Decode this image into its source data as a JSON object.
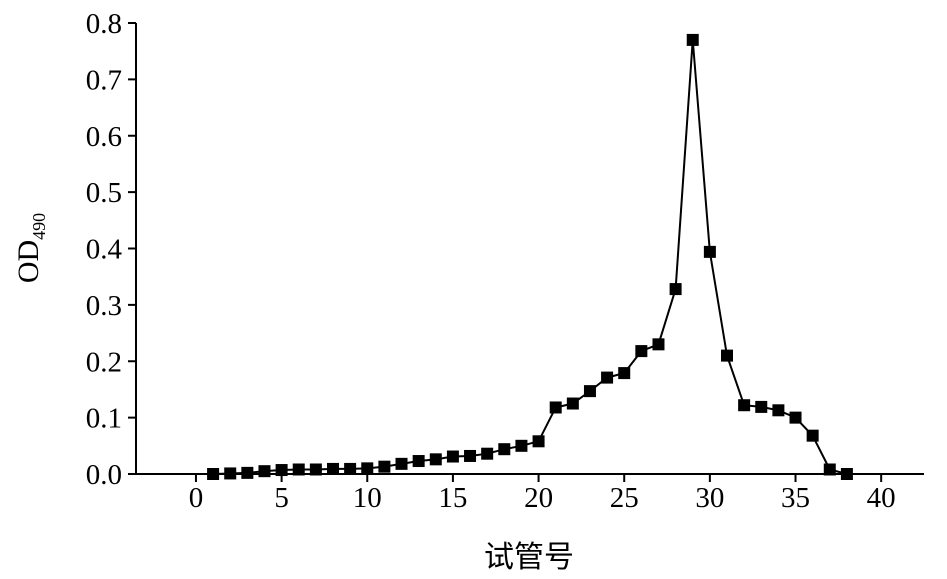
{
  "chart_data": {
    "type": "line",
    "title": "",
    "xlabel": "试管号",
    "ylabel": {
      "main": "OD",
      "subscript": "490"
    },
    "xlim": [
      -3.5,
      42.5
    ],
    "ylim": [
      0,
      0.8
    ],
    "xticks": [
      0,
      5,
      10,
      15,
      20,
      25,
      30,
      35,
      40
    ],
    "xtick_labels": [
      "0",
      "5",
      "10",
      "15",
      "20",
      "25",
      "30",
      "35",
      "40"
    ],
    "yticks": [
      0.0,
      0.1,
      0.2,
      0.3,
      0.4,
      0.5,
      0.6,
      0.7,
      0.8
    ],
    "ytick_labels": [
      "0.0",
      "0.1",
      "0.2",
      "0.3",
      "0.4",
      "0.5",
      "0.6",
      "0.7",
      "0.8"
    ],
    "grid": false,
    "marker": "square",
    "series": [
      {
        "color": "#000000",
        "x": [
          1,
          2,
          3,
          4,
          5,
          6,
          7,
          8,
          9,
          10,
          11,
          12,
          13,
          14,
          15,
          16,
          17,
          18,
          19,
          20,
          21,
          22,
          23,
          24,
          25,
          26,
          27,
          28,
          29,
          30,
          31,
          32,
          33,
          34,
          35,
          36,
          37,
          38
        ],
        "y": [
          0.0,
          0.001,
          0.002,
          0.005,
          0.007,
          0.008,
          0.008,
          0.009,
          0.009,
          0.01,
          0.013,
          0.018,
          0.023,
          0.026,
          0.031,
          0.032,
          0.036,
          0.044,
          0.05,
          0.058,
          0.118,
          0.125,
          0.147,
          0.171,
          0.179,
          0.218,
          0.23,
          0.328,
          0.77,
          0.394,
          0.21,
          0.122,
          0.119,
          0.113,
          0.1,
          0.068,
          0.008,
          0.0
        ]
      }
    ]
  }
}
